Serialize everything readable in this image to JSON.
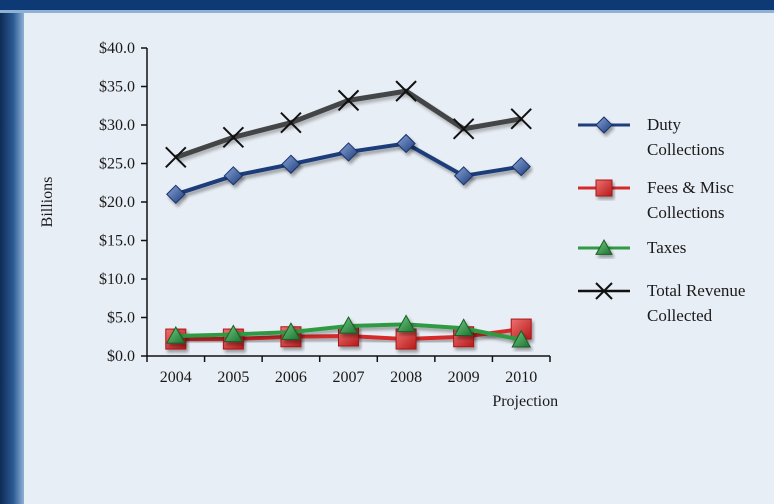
{
  "chart_data": {
    "type": "line",
    "title": "",
    "xlabel": "",
    "ylabel": "Billions",
    "categories": [
      "2004",
      "2005",
      "2006",
      "2007",
      "2008",
      "2009",
      "2010"
    ],
    "category_sublabels": [
      "",
      "",
      "",
      "",
      "",
      "",
      "Projection"
    ],
    "yticks": [
      "$0.0",
      "$5.0",
      "$10.0",
      "$15.0",
      "$20.0",
      "$25.0",
      "$30.0",
      "$35.0",
      "$40.0"
    ],
    "ylim": [
      0,
      40
    ],
    "grid": false,
    "legend_position": "right",
    "series": [
      {
        "key": "duty",
        "name_lines": [
          "Duty",
          "Collections"
        ],
        "values": [
          21.0,
          23.4,
          24.9,
          26.5,
          27.6,
          23.4,
          24.6
        ],
        "color": "#1f3d7a",
        "marker": "diamond"
      },
      {
        "key": "fees",
        "name_lines": [
          "Fees & Misc",
          "Collections"
        ],
        "values": [
          2.2,
          2.2,
          2.5,
          2.6,
          2.2,
          2.5,
          3.5
        ],
        "color": "#d42a2a",
        "marker": "square"
      },
      {
        "key": "taxes",
        "name_lines": [
          "Taxes"
        ],
        "values": [
          2.6,
          2.8,
          3.1,
          3.9,
          4.1,
          3.6,
          2.1
        ],
        "color": "#2e9a43",
        "marker": "triangle"
      },
      {
        "key": "total",
        "name_lines": [
          "Total Revenue",
          "Collected"
        ],
        "values": [
          25.8,
          28.4,
          30.3,
          33.2,
          34.4,
          29.5,
          30.8
        ],
        "color": "#111111",
        "marker": "x"
      }
    ]
  }
}
